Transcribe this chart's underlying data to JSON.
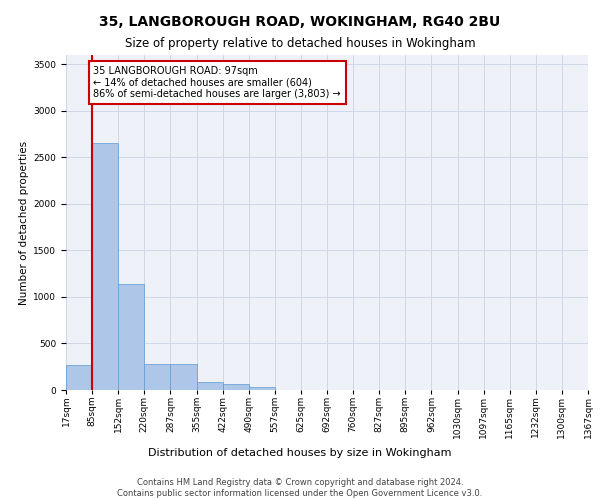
{
  "title1": "35, LANGBOROUGH ROAD, WOKINGHAM, RG40 2BU",
  "title2": "Size of property relative to detached houses in Wokingham",
  "xlabel": "Distribution of detached houses by size in Wokingham",
  "ylabel": "Number of detached properties",
  "bar_values": [
    270,
    2650,
    1140,
    280,
    280,
    90,
    60,
    35,
    0,
    0,
    0,
    0,
    0,
    0,
    0,
    0,
    0,
    0,
    0,
    0
  ],
  "x_labels": [
    "17sqm",
    "85sqm",
    "152sqm",
    "220sqm",
    "287sqm",
    "355sqm",
    "422sqm",
    "490sqm",
    "557sqm",
    "625sqm",
    "692sqm",
    "760sqm",
    "827sqm",
    "895sqm",
    "962sqm",
    "1030sqm",
    "1097sqm",
    "1165sqm",
    "1232sqm",
    "1300sqm",
    "1367sqm"
  ],
  "bar_color": "#aec6e8",
  "bar_edge_color": "#5b9bd5",
  "annotation_text": "35 LANGBOROUGH ROAD: 97sqm\n← 14% of detached houses are smaller (604)\n86% of semi-detached houses are larger (3,803) →",
  "annotation_box_color": "#ffffff",
  "annotation_box_edge_color": "#cc0000",
  "vline_color": "#cc0000",
  "grid_color": "#d0d8e8",
  "bg_color": "#eef2f8",
  "ylim": [
    0,
    3600
  ],
  "footer_text": "Contains HM Land Registry data © Crown copyright and database right 2024.\nContains public sector information licensed under the Open Government Licence v3.0.",
  "title1_fontsize": 10,
  "title2_fontsize": 8.5,
  "xlabel_fontsize": 8,
  "ylabel_fontsize": 7.5,
  "tick_fontsize": 6.5,
  "annotation_fontsize": 7,
  "footer_fontsize": 6
}
